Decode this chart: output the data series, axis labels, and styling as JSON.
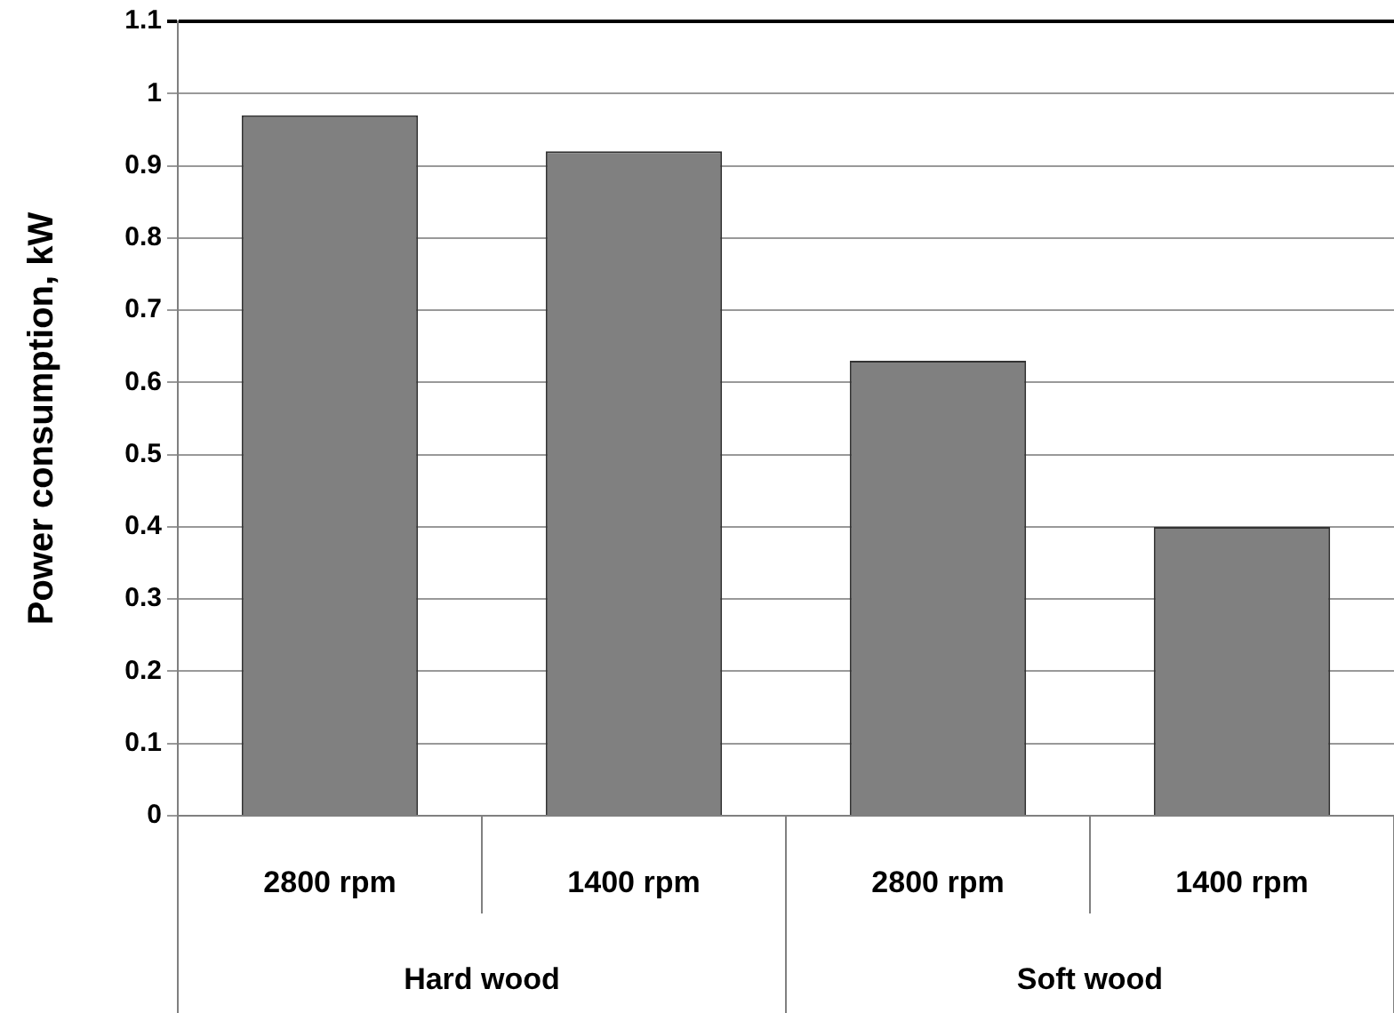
{
  "chart_data": {
    "type": "bar",
    "ylabel": "Power consumption, kW",
    "categories": [
      "2800 rpm",
      "1400 rpm",
      "2800 rpm",
      "1400 rpm"
    ],
    "values": [
      0.97,
      0.92,
      0.63,
      0.4
    ],
    "color": "#808080",
    "ylim": [
      0,
      1.1
    ],
    "yticks": [
      0,
      0.1,
      0.2,
      0.3,
      0.4,
      0.5,
      0.6,
      0.7,
      0.8,
      0.9,
      1,
      1.1
    ],
    "grid": "y",
    "legend": false,
    "annotations": [
      "Hard wood",
      "Soft wood"
    ]
  }
}
